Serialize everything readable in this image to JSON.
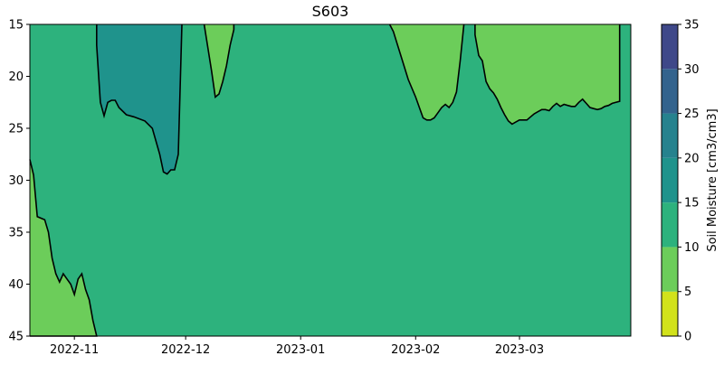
{
  "chart_data": {
    "type": "contour",
    "title": "S603",
    "xlabel": "",
    "ylabel": "",
    "x_tick_labels": [
      "2022-11",
      "2022-12",
      "2023-01",
      "2023-02",
      "2023-03"
    ],
    "x_ticks": [
      "2022-11-01",
      "2022-12-01",
      "2023-01-01",
      "2023-02-01",
      "2023-03-01"
    ],
    "xlim": [
      "2022-10-20",
      "2023-03-31"
    ],
    "y_ticks": [
      15,
      20,
      25,
      30,
      35,
      40,
      45
    ],
    "ylim": [
      45,
      15
    ],
    "y_inverted": true,
    "colorbar": {
      "label": "Soil Moisture [cm3/cm3]",
      "levels": [
        0,
        5,
        10,
        15,
        20,
        25,
        30,
        35
      ],
      "colors": [
        "#d2e21b",
        "#6ccd5a",
        "#2db27d",
        "#1f938c",
        "#26828e",
        "#33638d",
        "#3f4889",
        "#482475"
      ]
    },
    "background_level_range": [
      10,
      15
    ],
    "regions": [
      {
        "level_range": [
          5,
          10
        ],
        "boundary": [
          [
            "2022-10-20",
            28.0
          ],
          [
            "2022-10-21",
            29.5
          ],
          [
            "2022-10-22",
            33.5
          ],
          [
            "2022-10-24",
            33.8
          ],
          [
            "2022-10-25",
            35.0
          ],
          [
            "2022-10-26",
            37.5
          ],
          [
            "2022-10-27",
            39.0
          ],
          [
            "2022-10-28",
            39.8
          ],
          [
            "2022-10-29",
            39.0
          ],
          [
            "2022-10-30",
            39.5
          ],
          [
            "2022-10-31",
            40.0
          ],
          [
            "2022-11-01",
            41.0
          ],
          [
            "2022-11-02",
            39.5
          ],
          [
            "2022-11-03",
            39.0
          ],
          [
            "2022-11-04",
            40.5
          ],
          [
            "2022-11-05",
            41.5
          ],
          [
            "2022-11-06",
            43.5
          ],
          [
            "2022-11-07",
            45.0
          ],
          [
            "2022-10-20",
            45.0
          ]
        ]
      },
      {
        "level_range": [
          15,
          20
        ],
        "boundary": [
          [
            "2022-11-07",
            15.0
          ],
          [
            "2022-11-07",
            17.0
          ],
          [
            "2022-11-08",
            22.5
          ],
          [
            "2022-11-09",
            23.8
          ],
          [
            "2022-11-10",
            22.5
          ],
          [
            "2022-11-11",
            22.3
          ],
          [
            "2022-11-12",
            22.3
          ],
          [
            "2022-11-13",
            23.0
          ],
          [
            "2022-11-15",
            23.7
          ],
          [
            "2022-11-17",
            23.9
          ],
          [
            "2022-11-20",
            24.3
          ],
          [
            "2022-11-22",
            25.0
          ],
          [
            "2022-11-24",
            27.5
          ],
          [
            "2022-11-25",
            29.2
          ],
          [
            "2022-11-26",
            29.4
          ],
          [
            "2022-11-27",
            29.0
          ],
          [
            "2022-11-28",
            29.0
          ],
          [
            "2022-11-29",
            27.5
          ],
          [
            "2022-11-30",
            15.0
          ]
        ]
      },
      {
        "level_range": [
          5,
          10
        ],
        "boundary": [
          [
            "2022-12-06",
            15.0
          ],
          [
            "2022-12-08",
            19.5
          ],
          [
            "2022-12-09",
            22.0
          ],
          [
            "2022-12-10",
            21.7
          ],
          [
            "2022-12-11",
            20.5
          ],
          [
            "2022-12-12",
            19.0
          ],
          [
            "2022-12-13",
            17.0
          ],
          [
            "2022-12-14",
            15.5
          ],
          [
            "2022-12-14",
            15.0
          ]
        ]
      },
      {
        "level_range": [
          5,
          10
        ],
        "boundary": [
          [
            "2023-01-25",
            15.0
          ],
          [
            "2023-01-26",
            15.7
          ],
          [
            "2023-01-28",
            18.0
          ],
          [
            "2023-01-30",
            20.3
          ],
          [
            "2023-02-01",
            22.0
          ],
          [
            "2023-02-03",
            24.0
          ],
          [
            "2023-02-04",
            24.2
          ],
          [
            "2023-02-05",
            24.2
          ],
          [
            "2023-02-06",
            24.0
          ],
          [
            "2023-02-07",
            23.5
          ],
          [
            "2023-02-08",
            23.0
          ],
          [
            "2023-02-09",
            22.7
          ],
          [
            "2023-02-10",
            23.0
          ],
          [
            "2023-02-11",
            22.5
          ],
          [
            "2023-02-12",
            21.5
          ],
          [
            "2023-02-13",
            18.5
          ],
          [
            "2023-02-14",
            15.0
          ]
        ]
      },
      {
        "level_range": [
          5,
          10
        ],
        "boundary": [
          [
            "2023-02-17",
            15.0
          ],
          [
            "2023-02-17",
            16.0
          ],
          [
            "2023-02-18",
            18.0
          ],
          [
            "2023-02-19",
            18.5
          ],
          [
            "2023-02-20",
            20.5
          ],
          [
            "2023-02-21",
            21.2
          ],
          [
            "2023-02-22",
            21.6
          ],
          [
            "2023-02-23",
            22.2
          ],
          [
            "2023-02-24",
            23.0
          ],
          [
            "2023-02-25",
            23.7
          ],
          [
            "2023-02-26",
            24.3
          ],
          [
            "2023-02-27",
            24.6
          ],
          [
            "2023-02-28",
            24.4
          ],
          [
            "2023-03-01",
            24.2
          ],
          [
            "2023-03-02",
            24.2
          ],
          [
            "2023-03-03",
            24.2
          ],
          [
            "2023-03-04",
            23.9
          ],
          [
            "2023-03-05",
            23.6
          ],
          [
            "2023-03-06",
            23.4
          ],
          [
            "2023-03-07",
            23.2
          ],
          [
            "2023-03-08",
            23.2
          ],
          [
            "2023-03-09",
            23.3
          ],
          [
            "2023-03-10",
            22.9
          ],
          [
            "2023-03-11",
            22.6
          ],
          [
            "2023-03-12",
            22.9
          ],
          [
            "2023-03-13",
            22.7
          ],
          [
            "2023-03-14",
            22.8
          ],
          [
            "2023-03-15",
            22.9
          ],
          [
            "2023-03-16",
            22.9
          ],
          [
            "2023-03-17",
            22.5
          ],
          [
            "2023-03-18",
            22.2
          ],
          [
            "2023-03-19",
            22.6
          ],
          [
            "2023-03-20",
            23.0
          ],
          [
            "2023-03-21",
            23.1
          ],
          [
            "2023-03-22",
            23.2
          ],
          [
            "2023-03-23",
            23.1
          ],
          [
            "2023-03-24",
            22.9
          ],
          [
            "2023-03-25",
            22.8
          ],
          [
            "2023-03-26",
            22.6
          ],
          [
            "2023-03-28",
            22.4
          ],
          [
            "2023-03-28",
            15.0
          ]
        ]
      }
    ]
  }
}
